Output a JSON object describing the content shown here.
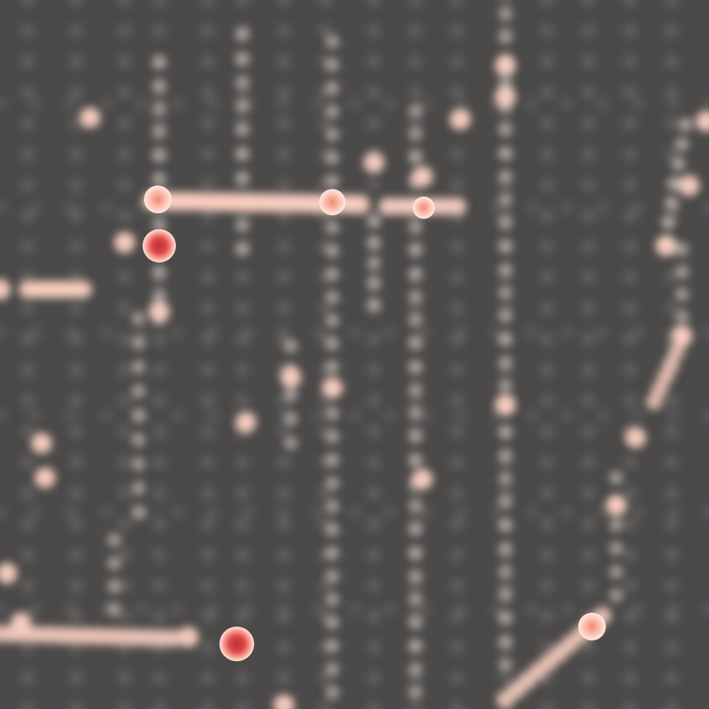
{
  "map": {
    "background": "#4b4a49",
    "heat_scale": {
      "faint": "#8a8785",
      "low": "#e9dcd6",
      "mid": "#fbd0c2",
      "high": "#f4a592",
      "peak": "#d93f45"
    },
    "hotspots": [
      {
        "intensity": 0.95
      },
      {
        "intensity": 0.95
      },
      {
        "intensity": 0.85
      }
    ]
  }
}
